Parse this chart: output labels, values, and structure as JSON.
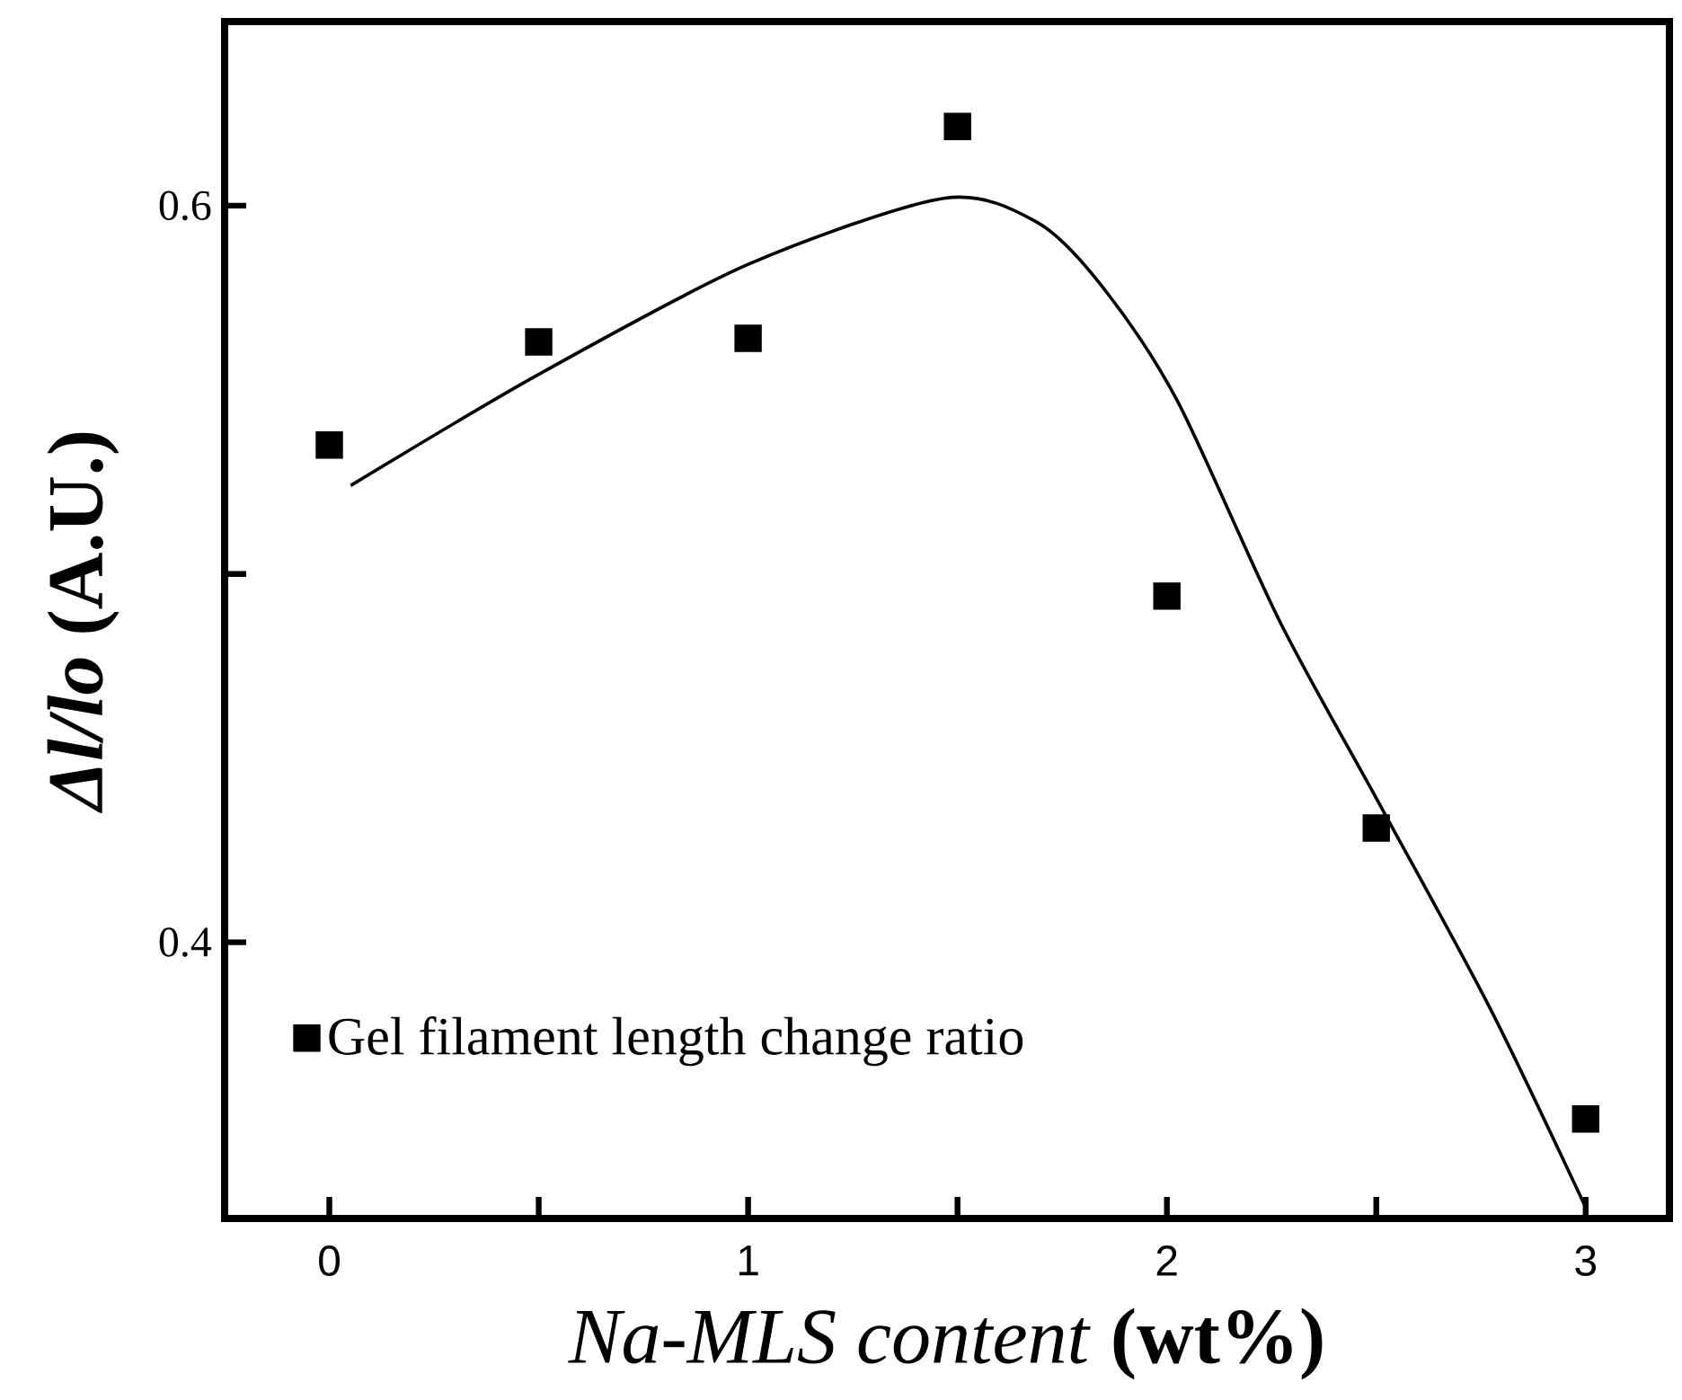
{
  "chart_data": {
    "type": "scatter",
    "xlabel": "*Na-MLS content* **(wt%)**",
    "ylabel": "*Δl/lo* (A.U.)",
    "xlim": [
      -0.25,
      3.2
    ],
    "ylim": [
      0.325,
      0.65
    ],
    "xticks": [
      0,
      {
        "value": 0.5,
        "label": null
      },
      1,
      {
        "value": 1.5,
        "label": null
      },
      2,
      {
        "value": 2.5,
        "label": null
      },
      3
    ],
    "yticks": [
      0.4,
      {
        "value": 0.5,
        "label": null
      },
      0.6
    ],
    "legend": "bottom left",
    "grid": false,
    "series": [
      {
        "name": "Gel filament length change ratio",
        "marker": "square",
        "color": "#000000",
        "x": [
          0,
          0.5,
          1,
          1.5,
          2,
          2.5,
          3
        ],
        "values": [
          0.535,
          0.563,
          0.564,
          0.6215,
          0.494,
          0.431,
          0.352
        ]
      },
      {
        "type": "line",
        "marker": "none",
        "color": "#000000",
        "x": [
          0.051,
          0.497,
          0.999,
          1.467,
          1.69,
          1.846,
          2.025,
          2.27,
          2.515,
          2.772,
          3.0
        ],
        "values": [
          0.524,
          0.554,
          0.584,
          0.602,
          0.5955,
          0.578,
          0.547,
          0.487,
          0.436,
          0.382,
          0.328
        ]
      }
    ]
  }
}
